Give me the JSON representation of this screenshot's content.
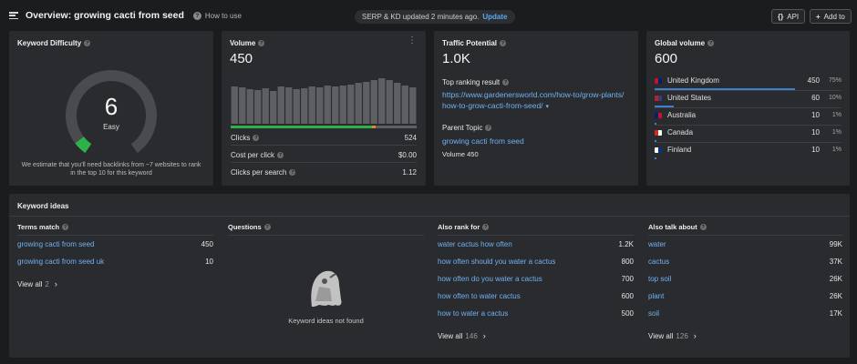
{
  "header": {
    "title": "Overview: growing cacti from seed",
    "how_to": "How to use",
    "update_text": "SERP & KD updated 2 minutes ago.",
    "update_link": "Update",
    "api_label": "API",
    "add_label": "Add to"
  },
  "kd": {
    "title": "Keyword Difficulty",
    "value": "6",
    "level": "Easy",
    "score_percent": 6,
    "note": "We estimate that you'll need backlinks from ~7 websites to rank in the top 10 for this keyword",
    "gauge_color": "#2db24a"
  },
  "volume": {
    "title": "Volume",
    "value": "450",
    "bars": [
      0.82,
      0.8,
      0.76,
      0.74,
      0.78,
      0.72,
      0.82,
      0.8,
      0.76,
      0.78,
      0.82,
      0.8,
      0.84,
      0.82,
      0.84,
      0.86,
      0.9,
      0.92,
      0.96,
      1.0,
      0.96,
      0.9,
      0.84,
      0.8
    ],
    "clicks_split": {
      "green": 0.76,
      "orange": 0.02
    },
    "clicks_label": "Clicks",
    "clicks_value": "524",
    "cpc_label": "Cost per click",
    "cpc_value": "$0.00",
    "cps_label": "Clicks per search",
    "cps_value": "1.12"
  },
  "traffic": {
    "title": "Traffic Potential",
    "value": "1.0K",
    "top_label": "Top ranking result",
    "top_url_1": "https://www.gardenersworld.com/how-to/grow-plants/",
    "top_url_2": "how-to-grow-cacti-from-seed/",
    "parent_label": "Parent Topic",
    "parent_value": "growing cacti from seed",
    "parent_volume": "Volume 450"
  },
  "global": {
    "title": "Global volume",
    "value": "600",
    "countries": [
      {
        "name": "United Kingdom",
        "value": "450",
        "pct": "75%",
        "share": 0.75,
        "flag_colors": [
          "#c8102e",
          "#012169"
        ]
      },
      {
        "name": "United States",
        "value": "60",
        "pct": "10%",
        "share": 0.1,
        "flag_colors": [
          "#b22234",
          "#3c3b6e"
        ]
      },
      {
        "name": "Australia",
        "value": "10",
        "pct": "1%",
        "share": 0.01,
        "flag_colors": [
          "#012169",
          "#c8102e"
        ]
      },
      {
        "name": "Canada",
        "value": "10",
        "pct": "1%",
        "share": 0.01,
        "flag_colors": [
          "#d52b1e",
          "#ffffff"
        ]
      },
      {
        "name": "Finland",
        "value": "10",
        "pct": "1%",
        "share": 0.01,
        "flag_colors": [
          "#ffffff",
          "#003580"
        ]
      }
    ]
  },
  "ideas": {
    "title": "Keyword ideas",
    "terms": {
      "title": "Terms match",
      "rows": [
        {
          "kw": "growing cacti from seed",
          "v": "450"
        },
        {
          "kw": "growing cacti from seed uk",
          "v": "10"
        }
      ],
      "view_all": "View all",
      "count": "2"
    },
    "questions": {
      "title": "Questions",
      "empty": "Keyword ideas not found"
    },
    "also_rank": {
      "title": "Also rank for",
      "rows": [
        {
          "kw": "water cactus how often",
          "v": "1.2K"
        },
        {
          "kw": "how often should you water a cactus",
          "v": "800"
        },
        {
          "kw": "how often do you water a cactus",
          "v": "700"
        },
        {
          "kw": "how often to water cactus",
          "v": "600"
        },
        {
          "kw": "how to water a cactus",
          "v": "500"
        }
      ],
      "view_all": "View all",
      "count": "146"
    },
    "also_talk": {
      "title": "Also talk about",
      "rows": [
        {
          "kw": "water",
          "v": "99K"
        },
        {
          "kw": "cactus",
          "v": "37K"
        },
        {
          "kw": "top soil",
          "v": "26K"
        },
        {
          "kw": "plant",
          "v": "26K"
        },
        {
          "kw": "soil",
          "v": "17K"
        }
      ],
      "view_all": "View all",
      "count": "126"
    }
  }
}
